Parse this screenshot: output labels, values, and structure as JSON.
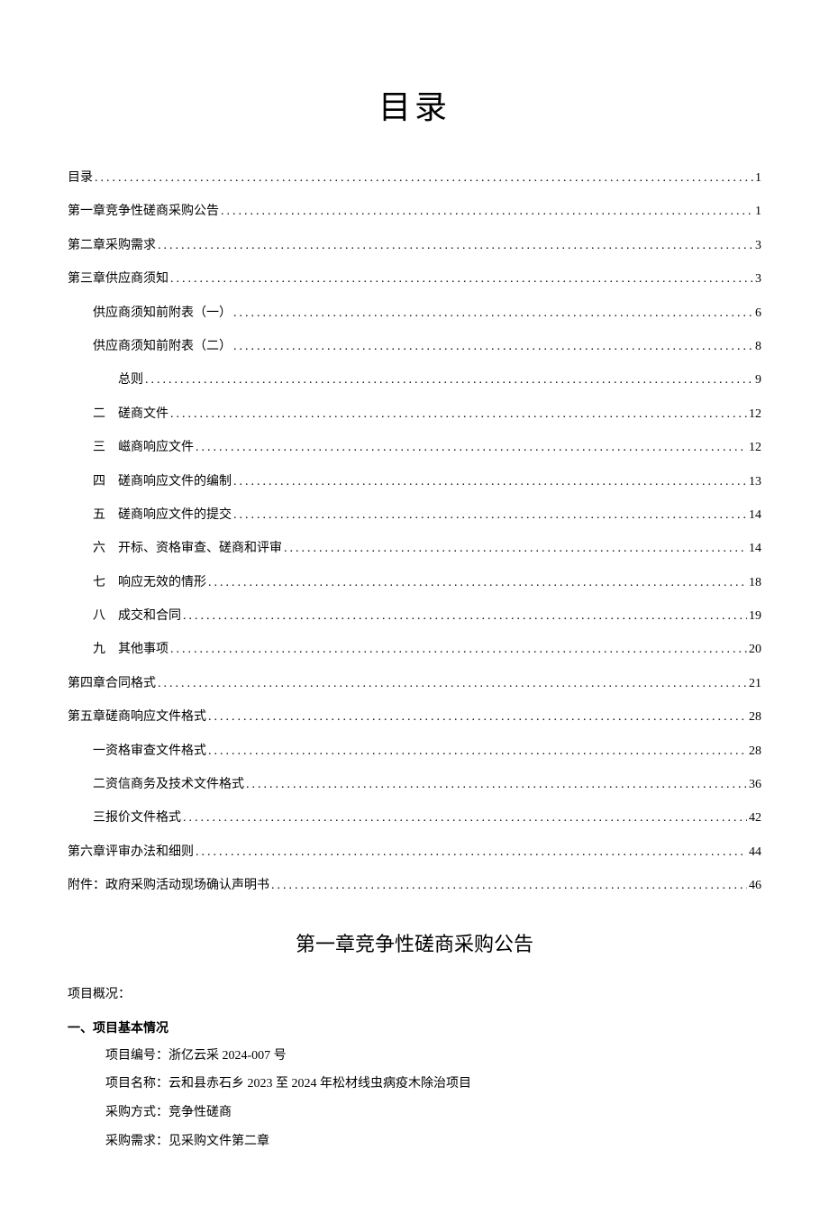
{
  "title": "目录",
  "toc": [
    {
      "indent": 0,
      "num": "",
      "label": "目录",
      "page": "1"
    },
    {
      "indent": 0,
      "num": "",
      "label": "第一章竞争性磋商采购公告",
      "page": "1"
    },
    {
      "indent": 0,
      "num": "",
      "label": "第二章采购需求",
      "page": "3"
    },
    {
      "indent": 0,
      "num": "",
      "label": "第三章供应商须知",
      "page": "3"
    },
    {
      "indent": 1,
      "num": "",
      "label": "供应商须知前附表（一）",
      "page": "6"
    },
    {
      "indent": 1,
      "num": "",
      "label": "供应商须知前附表（二）",
      "page": "8"
    },
    {
      "indent": 2,
      "num": "",
      "label": "总则",
      "page": "9"
    },
    {
      "indent": 1,
      "num": "二",
      "label": "磋商文件",
      "page": "12"
    },
    {
      "indent": 1,
      "num": "三",
      "label": "嵫商响应文件",
      "page": "12"
    },
    {
      "indent": 1,
      "num": "四",
      "label": "磋商响应文件的编制",
      "page": "13"
    },
    {
      "indent": 1,
      "num": "五",
      "label": "磋商响应文件的提交",
      "page": "14"
    },
    {
      "indent": 1,
      "num": "六",
      "label": "开标、资格审查、磋商和评审",
      "page": "14"
    },
    {
      "indent": 1,
      "num": "七",
      "label": "响应无效的情形",
      "page": "18"
    },
    {
      "indent": 1,
      "num": "八",
      "label": "成交和合同",
      "page": "19"
    },
    {
      "indent": 1,
      "num": "九",
      "label": "其他事项",
      "page": "20"
    },
    {
      "indent": 0,
      "num": "",
      "label": "第四章合同格式",
      "page": "21"
    },
    {
      "indent": 0,
      "num": "",
      "label": "第五章磋商响应文件格式",
      "page": "28"
    },
    {
      "indent": 1,
      "num": "",
      "label": "一资格审查文件格式",
      "page": "28"
    },
    {
      "indent": 1,
      "num": "",
      "label": "二资信商务及技术文件格式",
      "page": "36"
    },
    {
      "indent": 1,
      "num": "",
      "label": "三报价文件格式",
      "page": "42"
    },
    {
      "indent": 0,
      "num": "",
      "label": "第六章评审办法和细则",
      "page": "44"
    },
    {
      "indent": 0,
      "num": "",
      "label": "附件：政府采购活动现场确认声明书",
      "page": "46"
    }
  ],
  "chapter_title": "第一章竞争性磋商采购公告",
  "overview_label": "项目概况：",
  "basic_info_heading": "一、项目基本情况",
  "project_number_label": "项目编号：",
  "project_number_value": "浙亿云采 2024-007 号",
  "project_name_label": "项目名称：",
  "project_name_value": "云和县赤石乡 2023 至 2024 年松材线虫病疫木除治项目",
  "procurement_method_label": "采购方式：",
  "procurement_method_value": "竞争性磋商",
  "procurement_req_label": "采购需求：",
  "procurement_req_value": "见采购文件第二章"
}
